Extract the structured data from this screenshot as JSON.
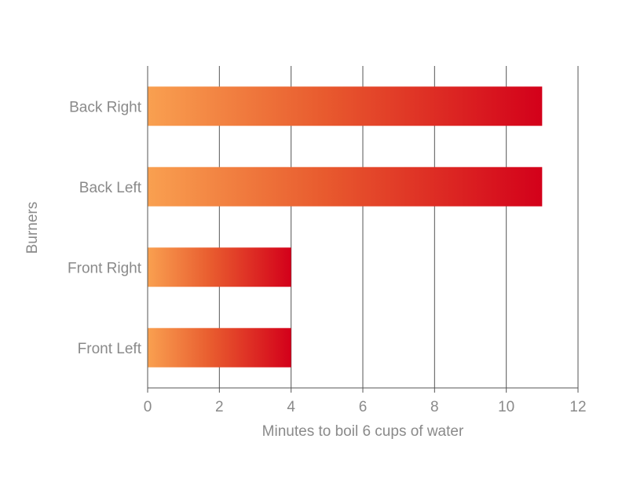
{
  "chart_data": {
    "type": "bar",
    "orientation": "horizontal",
    "categories": [
      "Back Right",
      "Back Left",
      "Front Right",
      "Front Left"
    ],
    "values": [
      11,
      11,
      4,
      4
    ],
    "title": "",
    "xlabel": "Minutes to boil 6 cups of water",
    "ylabel": "Burners",
    "xlim": [
      0,
      12
    ],
    "xticks": [
      0,
      2,
      4,
      6,
      8,
      10,
      12
    ],
    "grid": "vertical",
    "legend": "none",
    "colors": {
      "bar_gradient_start": "#f9a050",
      "bar_gradient_mid": "#e85a2e",
      "bar_gradient_end": "#d3001a",
      "gridline": "#555555",
      "text": "#8a8a8a"
    }
  }
}
